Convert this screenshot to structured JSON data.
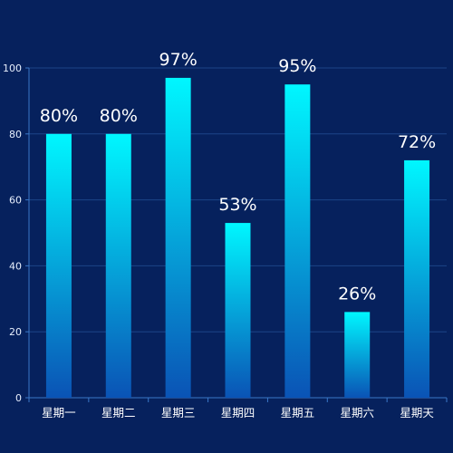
{
  "chart_data": {
    "type": "bar",
    "categories": [
      "星期一",
      "星期二",
      "星期三",
      "星期四",
      "星期五",
      "星期六",
      "星期天"
    ],
    "values": [
      80,
      80,
      97,
      53,
      95,
      26,
      72
    ],
    "data_labels": [
      "80%",
      "80%",
      "97%",
      "53%",
      "95%",
      "26%",
      "72%"
    ],
    "ylim": [
      0,
      100
    ],
    "yticks": [
      0,
      20,
      40,
      60,
      80,
      100
    ],
    "grid": true,
    "legend": "none",
    "title": "",
    "xlabel": "",
    "ylabel": ""
  },
  "colors": {
    "background": "#06215d",
    "bar_top": "#00f7ff",
    "bar_bottom": "#0a53b5",
    "axis": "#3a78c8",
    "grid": "#1c4488",
    "tick_text": "#e6eefc",
    "label_text": "#ffffff"
  }
}
